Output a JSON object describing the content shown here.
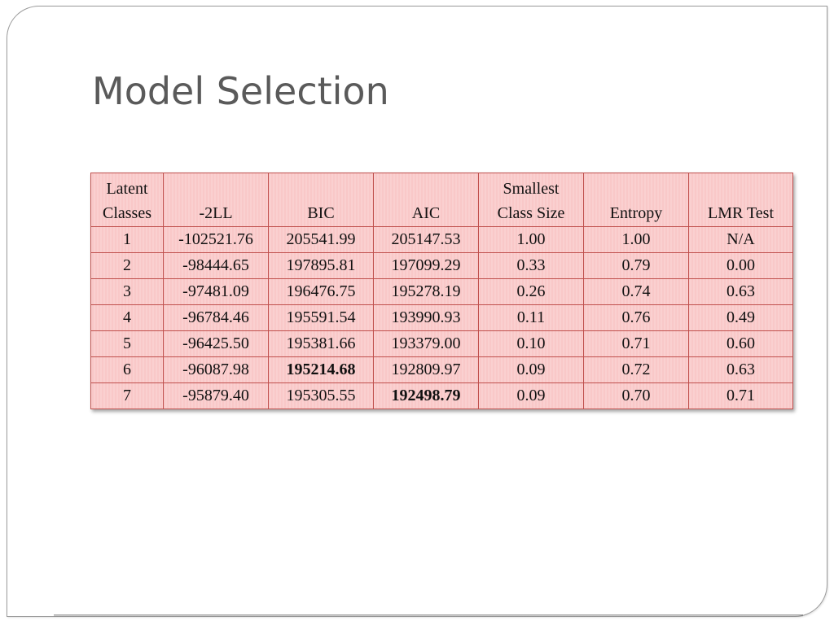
{
  "slide": {
    "title": "Model Selection"
  },
  "table": {
    "headers": {
      "latent_line1": "Latent",
      "latent_line2": "Classes",
      "neg2ll": "-2LL",
      "bic": "BIC",
      "aic": "AIC",
      "smallest_line1": "Smallest",
      "smallest_line2": "Class Size",
      "entropy": "Entropy",
      "lmr": "LMR Test"
    },
    "rows": [
      {
        "classes": "1",
        "neg2ll": "-102521.76",
        "bic": "205541.99",
        "aic": "205147.53",
        "smallest": "1.00",
        "entropy": "1.00",
        "lmr": "N/A"
      },
      {
        "classes": "2",
        "neg2ll": "-98444.65",
        "bic": "197895.81",
        "aic": "197099.29",
        "smallest": "0.33",
        "entropy": "0.79",
        "lmr": "0.00"
      },
      {
        "classes": "3",
        "neg2ll": "-97481.09",
        "bic": "196476.75",
        "aic": "195278.19",
        "smallest": "0.26",
        "entropy": "0.74",
        "lmr": "0.63"
      },
      {
        "classes": "4",
        "neg2ll": "-96784.46",
        "bic": "195591.54",
        "aic": "193990.93",
        "smallest": "0.11",
        "entropy": "0.76",
        "lmr": "0.49"
      },
      {
        "classes": "5",
        "neg2ll": "-96425.50",
        "bic": "195381.66",
        "aic": "193379.00",
        "smallest": "0.10",
        "entropy": "0.71",
        "lmr": "0.60"
      },
      {
        "classes": "6",
        "neg2ll": "-96087.98",
        "bic": "195214.68",
        "aic": "192809.97",
        "smallest": "0.09",
        "entropy": "0.72",
        "lmr": "0.63"
      },
      {
        "classes": "7",
        "neg2ll": "-95879.40",
        "bic": "195305.55",
        "aic": "192498.79",
        "smallest": "0.09",
        "entropy": "0.70",
        "lmr": "0.71"
      }
    ],
    "highlighted": {
      "best_bic": "195214.68",
      "best_aic": "192498.79"
    }
  },
  "colors": {
    "title": "#5a5a5a",
    "cell_fill": "#f9c8c8",
    "cell_border": "#c0504d",
    "slide_border": "#9a9a9a"
  }
}
